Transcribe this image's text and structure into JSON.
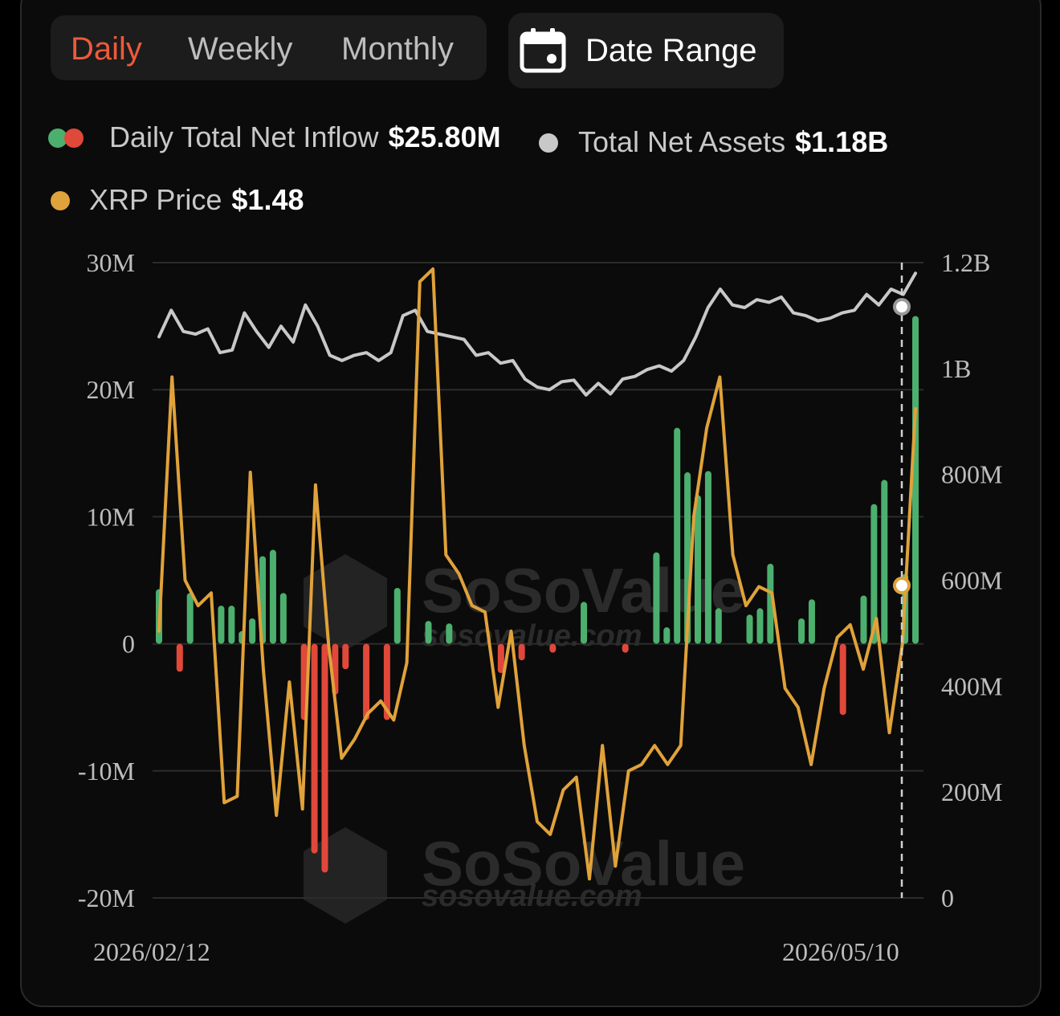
{
  "tabs": [
    {
      "label": "Daily",
      "active": true
    },
    {
      "label": "Weekly",
      "active": false
    },
    {
      "label": "Monthly",
      "active": false
    }
  ],
  "date_range": {
    "label": "Date Range",
    "icon": "calendar-icon"
  },
  "legend": {
    "inflow": {
      "label": "Daily Total Net Inflow",
      "value": "$25.80M"
    },
    "assets": {
      "label": "Total Net Assets",
      "value": "$1.18B"
    },
    "price": {
      "label": "XRP Price",
      "value": "$1.48"
    }
  },
  "colors": {
    "positive": "#4caf6e",
    "negative": "#e0483a",
    "assets": "#c8c8c8",
    "price": "#e0a23a",
    "active_tab": "#ee5a3a"
  },
  "watermark": {
    "brand": "SoSoValue",
    "url": "sosovalue.com"
  },
  "chart_data": {
    "type": "bar",
    "x_start_label": "2026/02/12",
    "x_end_label": "2026/05/10",
    "left_axis": {
      "ticks": [
        "30M",
        "20M",
        "10M",
        "0",
        "-10M",
        "-20M"
      ],
      "min": -20,
      "max": 30,
      "unit": "M"
    },
    "right_axis": {
      "ticks": [
        "1.2B",
        "1B",
        "800M",
        "600M",
        "400M",
        "200M",
        "0"
      ],
      "min": 0,
      "max": 1200,
      "unit": "M"
    },
    "series": [
      {
        "name": "Daily Total Net Inflow",
        "kind": "bar",
        "values": [
          4.3,
          0,
          -2.2,
          4.0,
          0,
          0,
          3.0,
          3.0,
          1.0,
          2.0,
          6.9,
          7.4,
          4.0,
          0,
          -6.0,
          -16.5,
          -18.0,
          -4.0,
          -2.0,
          0,
          -6.0,
          0,
          -6.0,
          4.4,
          0,
          0,
          1.8,
          0,
          1.6,
          0,
          0,
          0,
          0,
          -2.3,
          0,
          -1.3,
          0,
          0,
          -0.7,
          0,
          0,
          3.3,
          0,
          0,
          0,
          -0.7,
          0,
          0,
          7.2,
          1.3,
          17.0,
          13.5,
          11.7,
          13.6,
          2.8,
          0,
          0,
          2.3,
          2.8,
          6.3,
          0,
          0,
          2.0,
          3.5,
          0,
          0,
          -5.6,
          0,
          3.8,
          11.0,
          12.9,
          0,
          5.5,
          25.8
        ],
        "positive_color": "#4caf6e",
        "negative_color": "#e0483a"
      },
      {
        "name": "Total Net Assets",
        "kind": "line",
        "axis": "right",
        "values": [
          1060,
          1110,
          1070,
          1065,
          1075,
          1030,
          1035,
          1105,
          1070,
          1040,
          1080,
          1050,
          1120,
          1080,
          1025,
          1015,
          1025,
          1030,
          1015,
          1030,
          1100,
          1110,
          1070,
          1065,
          1060,
          1055,
          1025,
          1030,
          1010,
          1015,
          980,
          965,
          960,
          975,
          978,
          950,
          972,
          952,
          980,
          985,
          998,
          1005,
          995,
          1015,
          1060,
          1115,
          1150,
          1120,
          1115,
          1130,
          1125,
          1135,
          1105,
          1100,
          1090,
          1095,
          1105,
          1110,
          1140,
          1120,
          1150,
          1140,
          1180
        ],
        "color": "#c8c8c8"
      },
      {
        "name": "XRP Price",
        "kind": "line",
        "values": [
          0.42,
          0.82,
          0.5,
          0.46,
          0.48,
          0.15,
          0.16,
          0.67,
          0.36,
          0.13,
          0.34,
          0.14,
          0.65,
          0.4,
          0.22,
          0.25,
          0.29,
          0.31,
          0.28,
          0.37,
          0.97,
          0.99,
          0.54,
          0.51,
          0.46,
          0.45,
          0.3,
          0.42,
          0.24,
          0.12,
          0.1,
          0.17,
          0.19,
          0.03,
          0.24,
          0.05,
          0.2,
          0.21,
          0.24,
          0.21,
          0.24,
          0.6,
          0.74,
          0.82,
          0.54,
          0.46,
          0.49,
          0.48,
          0.33,
          0.3,
          0.21,
          0.33,
          0.41,
          0.43,
          0.36,
          0.44,
          0.26,
          0.4,
          0.77
        ],
        "color": "#e0a23a"
      }
    ],
    "marker_index": 73,
    "grid": true
  }
}
